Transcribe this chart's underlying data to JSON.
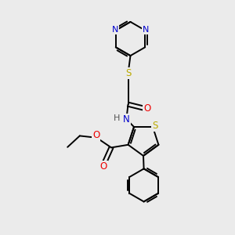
{
  "bg_color": "#ebebeb",
  "bond_color": "#000000",
  "bond_width": 1.4,
  "atom_colors": {
    "N": "#0000cc",
    "S": "#bbaa00",
    "O": "#ee0000",
    "H": "#555555",
    "C": "#000000"
  }
}
